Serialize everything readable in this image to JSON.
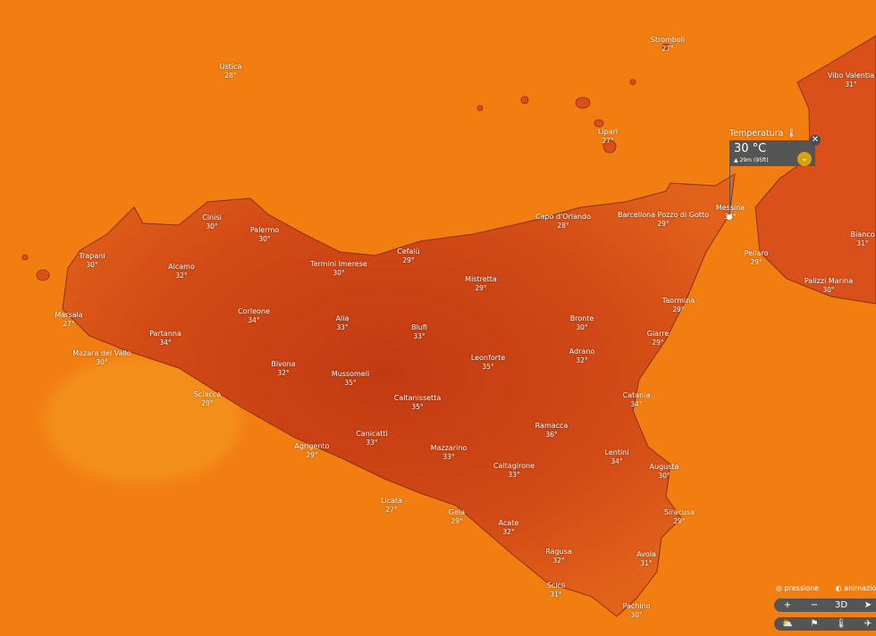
{
  "colors": {
    "sea": "#f27e12",
    "land": "#d9501a",
    "land_hot": "#c43c12",
    "popup": "#555555",
    "accent": "#d9a010"
  },
  "cities": [
    {
      "name": "Stromboli",
      "temp": "27°"
    },
    {
      "name": "Ustica",
      "temp": "28°"
    },
    {
      "name": "Lipari",
      "temp": "27°"
    },
    {
      "name": "Vibo Valentia",
      "temp": "31°"
    },
    {
      "name": "Messina",
      "temp": "33°"
    },
    {
      "name": "Capo d'Orlando",
      "temp": "28°"
    },
    {
      "name": "Barcellona Pozzo di Gotto",
      "temp": "29°"
    },
    {
      "name": "Cinisi",
      "temp": "30°"
    },
    {
      "name": "Palermo",
      "temp": "30°"
    },
    {
      "name": "Trapani",
      "temp": "30°"
    },
    {
      "name": "Alcamo",
      "temp": "32°"
    },
    {
      "name": "Cefalù",
      "temp": "29°"
    },
    {
      "name": "Termini Imerese",
      "temp": "30°"
    },
    {
      "name": "Mistretta",
      "temp": "29°"
    },
    {
      "name": "Pellaro",
      "temp": "29°"
    },
    {
      "name": "Bianco",
      "temp": "31°"
    },
    {
      "name": "Palizzi Marina",
      "temp": "30°"
    },
    {
      "name": "Marsala",
      "temp": "27°"
    },
    {
      "name": "Corleone",
      "temp": "34°"
    },
    {
      "name": "Partanna",
      "temp": "34°"
    },
    {
      "name": "Alia",
      "temp": "33°"
    },
    {
      "name": "Blufi",
      "temp": "33°"
    },
    {
      "name": "Bronte",
      "temp": "30°"
    },
    {
      "name": "Taormina",
      "temp": "29°"
    },
    {
      "name": "Mazara del Vallo",
      "temp": "30°"
    },
    {
      "name": "Bivona",
      "temp": "32°"
    },
    {
      "name": "Mussomeli",
      "temp": "35°"
    },
    {
      "name": "Leonforte",
      "temp": "35°"
    },
    {
      "name": "Adrano",
      "temp": "32°"
    },
    {
      "name": "Giarre",
      "temp": "29°"
    },
    {
      "name": "Sciacca",
      "temp": "29°"
    },
    {
      "name": "Caltanissetta",
      "temp": "35°"
    },
    {
      "name": "Catania",
      "temp": "34°"
    },
    {
      "name": "Ramacca",
      "temp": "36°"
    },
    {
      "name": "Agrigento",
      "temp": "29°"
    },
    {
      "name": "Canicattì",
      "temp": "33°"
    },
    {
      "name": "Mazzarino",
      "temp": "33°"
    },
    {
      "name": "Caltagirone",
      "temp": "33°"
    },
    {
      "name": "Lentini",
      "temp": "34°"
    },
    {
      "name": "Augusta",
      "temp": "30°"
    },
    {
      "name": "Licata",
      "temp": "27°"
    },
    {
      "name": "Gela",
      "temp": "29°"
    },
    {
      "name": "Acate",
      "temp": "32°"
    },
    {
      "name": "Siracusa",
      "temp": "29°"
    },
    {
      "name": "Ragusa",
      "temp": "32°"
    },
    {
      "name": "Avola",
      "temp": "31°"
    },
    {
      "name": "Scicli",
      "temp": "31°"
    },
    {
      "name": "Pachino",
      "temp": "30°"
    }
  ],
  "popup": {
    "title": "Temperatura",
    "icon": "thermometer-icon",
    "value": "30 °C",
    "elevation": "29m (95ft)"
  },
  "controls": {
    "pressure_label": "pressione",
    "animation_label": "animazione d",
    "zoom_in": "+",
    "zoom_out": "−",
    "mode_3d": "3D",
    "locate": "➤",
    "weather": "⛅",
    "flag": "⚑",
    "temp": "🌡",
    "plane": "✈"
  }
}
